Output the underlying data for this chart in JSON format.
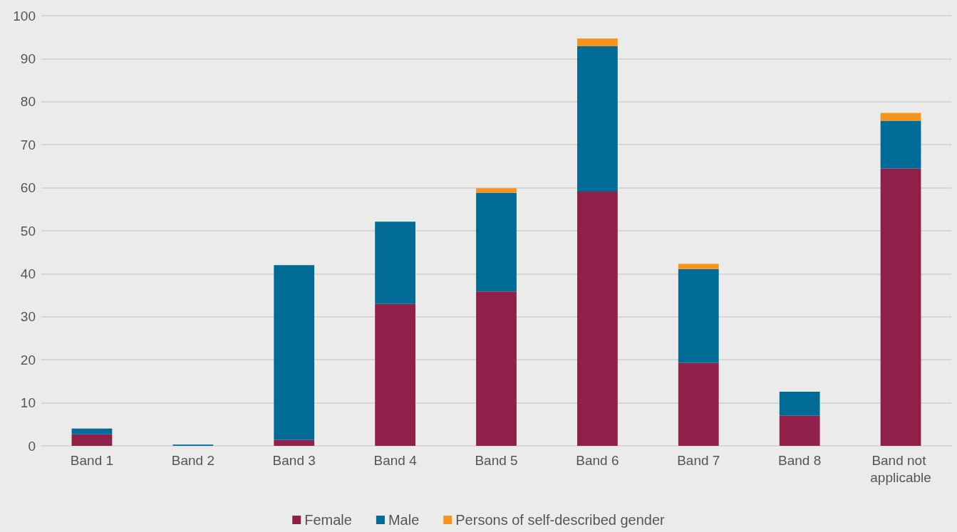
{
  "chart_data": {
    "type": "bar",
    "stacked": true,
    "categories": [
      "Band 1",
      "Band 2",
      "Band 3",
      "Band 4",
      "Band 5",
      "Band 6",
      "Band 7",
      "Band 8",
      "Band not applicable"
    ],
    "series": [
      {
        "name": "Female",
        "color": "#8e2049",
        "values": [
          2.7,
          0,
          1.4,
          33,
          35.9,
          59.1,
          19.3,
          7,
          64.5
        ]
      },
      {
        "name": "Male",
        "color": "#006b96",
        "values": [
          1.3,
          0.3,
          40.6,
          19.1,
          22.9,
          33.8,
          21.8,
          5.6,
          11.1
        ]
      },
      {
        "name": "Persons of self-described gender",
        "color": "#f7941d",
        "values": [
          0,
          0,
          0,
          0,
          1.1,
          1.8,
          1.2,
          0,
          1.8
        ]
      }
    ],
    "ylim": [
      0,
      100
    ],
    "yticks": [
      0,
      10,
      20,
      30,
      40,
      50,
      60,
      70,
      80,
      90,
      100
    ],
    "grid": "y",
    "legend": "bottom"
  }
}
